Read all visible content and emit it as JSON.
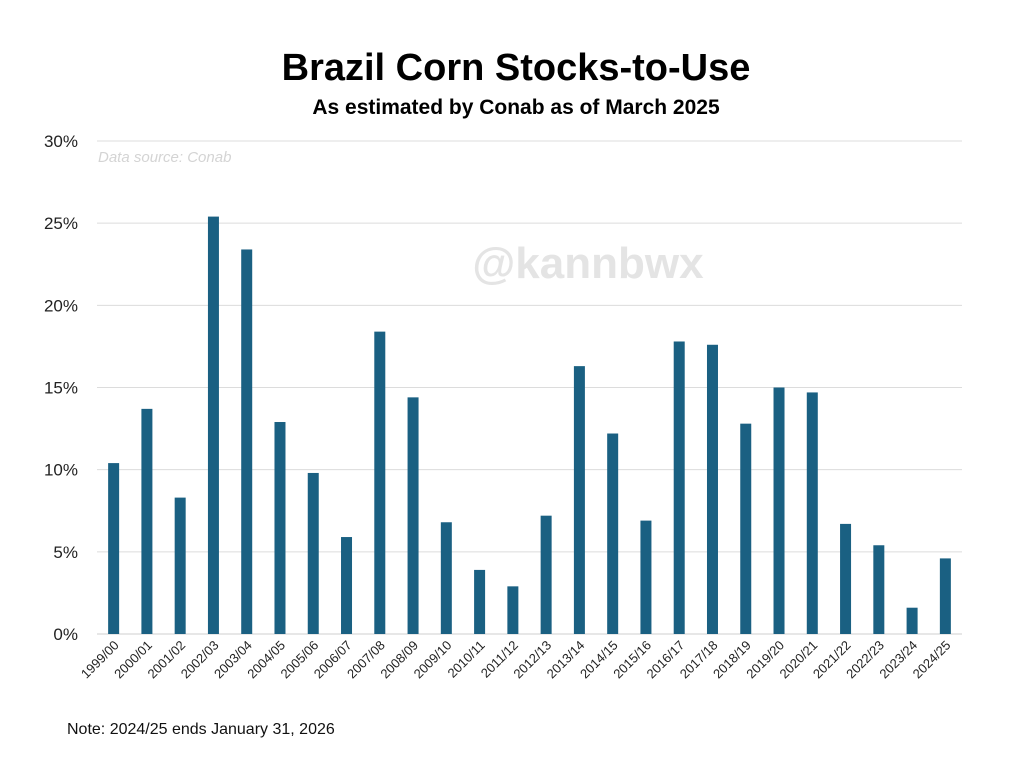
{
  "chart_data": {
    "type": "bar",
    "title": "Brazil Corn Stocks-to-Use",
    "subtitle": "As estimated by Conab as of March 2025",
    "source": "Data source: Conab",
    "watermark": "@kannbwx",
    "note": "Note: 2024/25 ends January 31, 2026",
    "xlabel": "",
    "ylabel": "",
    "ylim": [
      0,
      30
    ],
    "yticks": [
      0,
      5,
      10,
      15,
      20,
      25,
      30
    ],
    "ytick_labels": [
      "0%",
      "5%",
      "10%",
      "15%",
      "20%",
      "25%",
      "30%"
    ],
    "grid": true,
    "bar_color": "#1a6082",
    "categories": [
      "1999/00",
      "2000/01",
      "2001/02",
      "2002/03",
      "2003/04",
      "2004/05",
      "2005/06",
      "2006/07",
      "2007/08",
      "2008/09",
      "2009/10",
      "2010/11",
      "2011/12",
      "2012/13",
      "2013/14",
      "2014/15",
      "2015/16",
      "2016/17",
      "2017/18",
      "2018/19",
      "2019/20",
      "2020/21",
      "2021/22",
      "2022/23",
      "2023/24",
      "2024/25"
    ],
    "values": [
      10.4,
      13.7,
      8.3,
      25.4,
      23.4,
      12.9,
      9.8,
      5.9,
      18.4,
      14.4,
      6.8,
      3.9,
      2.9,
      7.2,
      16.3,
      12.2,
      6.9,
      17.8,
      17.6,
      12.8,
      15.0,
      14.7,
      6.7,
      5.4,
      1.6,
      4.6
    ]
  }
}
